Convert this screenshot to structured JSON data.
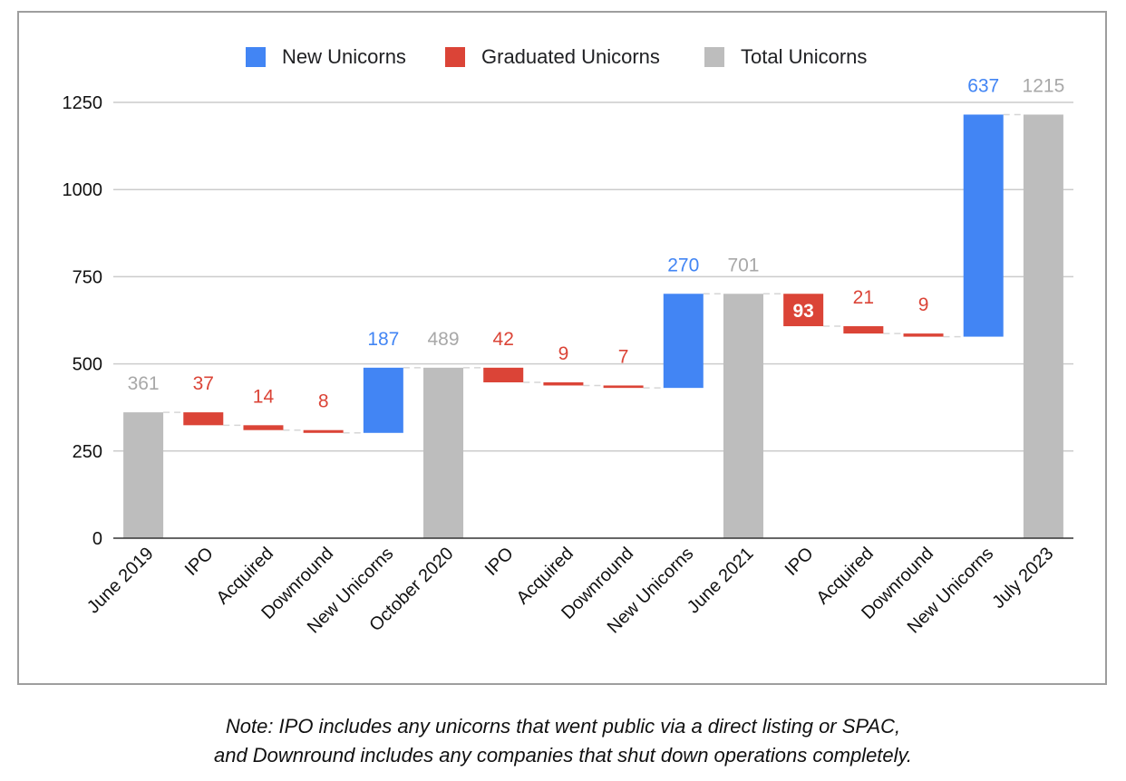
{
  "chart_data": {
    "type": "waterfall",
    "title": "",
    "xlabel": "",
    "ylabel": "",
    "ylim": [
      0,
      1250
    ],
    "yticks": [
      0,
      250,
      500,
      750,
      1000,
      1250
    ],
    "grid": true,
    "legend_position": "top-center",
    "legend": [
      {
        "name": "New Unicorns",
        "color": "#4285f4"
      },
      {
        "name": "Graduated Unicorns",
        "color": "#db4437"
      },
      {
        "name": "Total Unicorns",
        "color": "#bdbdbd"
      }
    ],
    "points": [
      {
        "category": "June 2019",
        "kind": "total",
        "value": 361,
        "label": "361"
      },
      {
        "category": "IPO",
        "kind": "decrease",
        "value": 37,
        "label": "37"
      },
      {
        "category": "Acquired",
        "kind": "decrease",
        "value": 14,
        "label": "14"
      },
      {
        "category": "Downround",
        "kind": "decrease",
        "value": 8,
        "label": "8"
      },
      {
        "category": "New Unicorns",
        "kind": "increase",
        "value": 187,
        "label": "187"
      },
      {
        "category": "October 2020",
        "kind": "total",
        "value": 489,
        "label": "489"
      },
      {
        "category": "IPO",
        "kind": "decrease",
        "value": 42,
        "label": "42"
      },
      {
        "category": "Acquired",
        "kind": "decrease",
        "value": 9,
        "label": "9"
      },
      {
        "category": "Downround",
        "kind": "decrease",
        "value": 7,
        "label": "7"
      },
      {
        "category": "New Unicorns",
        "kind": "increase",
        "value": 270,
        "label": "270"
      },
      {
        "category": "June 2021",
        "kind": "total",
        "value": 701,
        "label": "701"
      },
      {
        "category": "IPO",
        "kind": "decrease",
        "value": 93,
        "label": "93"
      },
      {
        "category": "Acquired",
        "kind": "decrease",
        "value": 21,
        "label": "21"
      },
      {
        "category": "Downround",
        "kind": "decrease",
        "value": 9,
        "label": "9"
      },
      {
        "category": "New Unicorns",
        "kind": "increase",
        "value": 637,
        "label": "637"
      },
      {
        "category": "July 2023",
        "kind": "total",
        "value": 1215,
        "label": "1215"
      }
    ]
  },
  "colors": {
    "increase": "#4285f4",
    "decrease": "#db4437",
    "total": "#bdbdbd",
    "total_label": "#a8a8a8",
    "grid": "#cccccc",
    "axis": "#333333",
    "connector": "#d6d6d6"
  },
  "note": {
    "line1": "Note: IPO includes any unicorns that went public via a direct listing or SPAC,",
    "line2": "and Downround includes any companies that shut down operations completely."
  }
}
